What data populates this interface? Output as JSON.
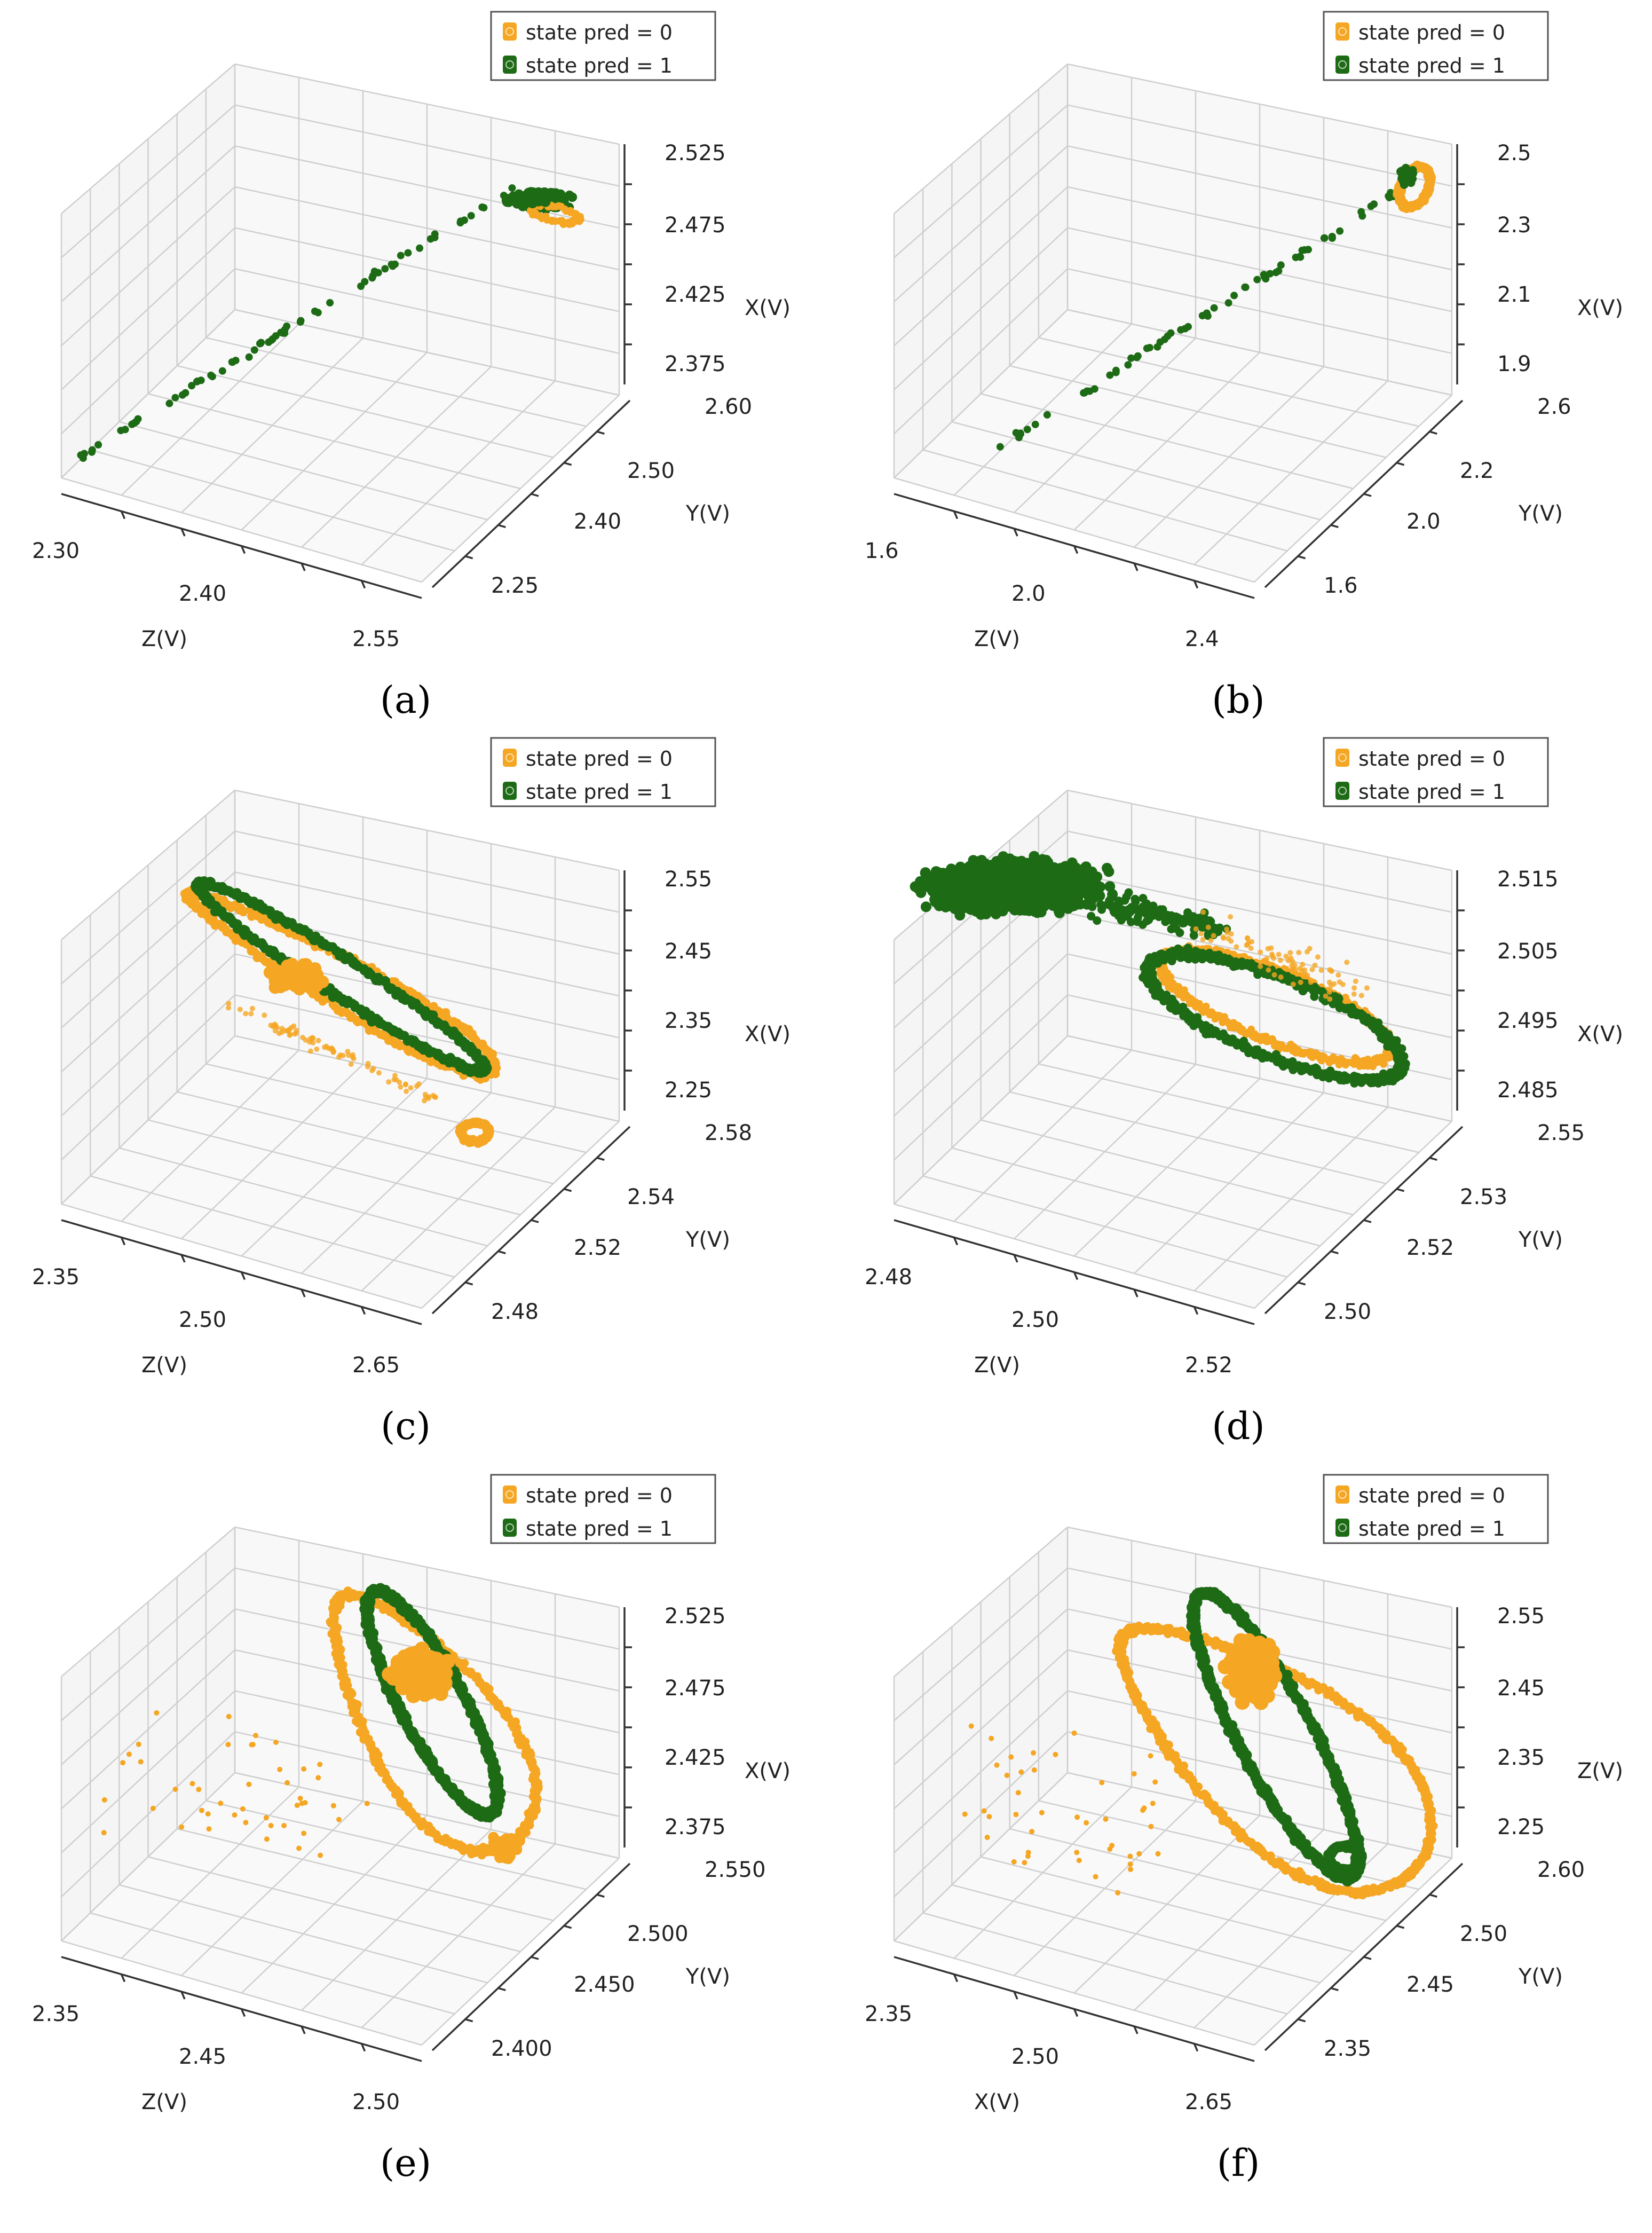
{
  "figure": {
    "panel_count": 6
  },
  "colors": {
    "state0": "#f5a623",
    "state1": "#1e6b16",
    "grid": "#cfcfcf",
    "pane": "#f2f2f2",
    "axis": "#333333"
  },
  "chart_data": [
    {
      "type": "scatter3d",
      "caption": "(a)",
      "legend": [
        "state  pred  =  0",
        "state  pred  =  1"
      ],
      "axes": {
        "vertical": {
          "label": "X(V)",
          "ticks": [
            "2.525",
            "2.475",
            "2.425",
            "2.375"
          ]
        },
        "right": {
          "label": "Y(V)",
          "ticks": [
            "2.60",
            "2.50",
            "2.40",
            "2.25"
          ]
        },
        "left": {
          "label": "Z(V)",
          "ticks": [
            "2.30",
            "2.40",
            "2.55"
          ]
        }
      },
      "pattern": "line",
      "series": [
        {
          "name": "state pred = 1",
          "trend": [
            {
              "x": 2.36,
              "y": 2.27,
              "z": 2.3
            },
            {
              "x": 2.49,
              "y": 2.52,
              "z": 2.5
            }
          ],
          "cluster": "end"
        },
        {
          "name": "state pred = 0",
          "cluster": "end-small"
        }
      ]
    },
    {
      "type": "scatter3d",
      "caption": "(b)",
      "legend": [
        "state  pred  =  0",
        "state  pred  =  1"
      ],
      "axes": {
        "vertical": {
          "label": "X(V)",
          "ticks": [
            "2.5",
            "2.3",
            "2.1",
            "1.9"
          ]
        },
        "right": {
          "label": "Y(V)",
          "ticks": [
            "2.6",
            "2.2",
            "2.0",
            "1.6"
          ]
        },
        "left": {
          "label": "Z(V)",
          "ticks": [
            "1.6",
            "2.0",
            "2.4"
          ]
        }
      },
      "pattern": "line",
      "series": [
        {
          "name": "state pred = 1",
          "trend": [
            {
              "x": 1.8,
              "y": 1.7,
              "z": 1.7
            },
            {
              "x": 2.5,
              "y": 2.5,
              "z": 2.4
            }
          ],
          "cluster": "end"
        },
        {
          "name": "state pred = 0",
          "cluster": "end-loop"
        }
      ]
    },
    {
      "type": "scatter3d",
      "caption": "(c)",
      "legend": [
        "state  pred  =  0",
        "state  pred  =  1"
      ],
      "axes": {
        "vertical": {
          "label": "X(V)",
          "ticks": [
            "2.55",
            "2.45",
            "2.35",
            "2.25"
          ]
        },
        "right": {
          "label": "Y(V)",
          "ticks": [
            "2.58",
            "2.54",
            "2.52",
            "2.48"
          ]
        },
        "left": {
          "label": "Z(V)",
          "ticks": [
            "2.35",
            "2.50",
            "2.65"
          ]
        }
      },
      "pattern": "elongated-loop",
      "series": [
        {
          "name": "state pred = 0"
        },
        {
          "name": "state pred = 1"
        }
      ]
    },
    {
      "type": "scatter3d",
      "caption": "(d)",
      "legend": [
        "state  pred  =  0",
        "state  pred  =  1"
      ],
      "axes": {
        "vertical": {
          "label": "X(V)",
          "ticks": [
            "2.515",
            "2.505",
            "2.495",
            "2.485"
          ]
        },
        "right": {
          "label": "Y(V)",
          "ticks": [
            "2.55",
            "2.53",
            "2.52",
            "2.50"
          ]
        },
        "left": {
          "label": "Z(V)",
          "ticks": [
            "2.48",
            "2.50",
            "2.52"
          ]
        }
      },
      "pattern": "dense-cloud-loop",
      "series": [
        {
          "name": "state pred = 1"
        },
        {
          "name": "state pred = 0"
        }
      ]
    },
    {
      "type": "scatter3d",
      "caption": "(e)",
      "legend": [
        "state  pred  =  0",
        "state  pred  =  1"
      ],
      "axes": {
        "vertical": {
          "label": "X(V)",
          "ticks": [
            "2.525",
            "2.475",
            "2.425",
            "2.375"
          ]
        },
        "right": {
          "label": "Y(V)",
          "ticks": [
            "2.550",
            "2.500",
            "2.450",
            "2.400"
          ]
        },
        "left": {
          "label": "Z(V)",
          "ticks": [
            "2.35",
            "2.45",
            "2.50"
          ]
        }
      },
      "pattern": "nested-loops-scatter",
      "series": [
        {
          "name": "state pred = 0"
        },
        {
          "name": "state pred = 1"
        }
      ]
    },
    {
      "type": "scatter3d",
      "caption": "(f)",
      "legend": [
        "state  pred  =  0",
        "state  pred  =  1"
      ],
      "axes": {
        "vertical": {
          "label": "Z(V)",
          "ticks": [
            "2.55",
            "2.45",
            "2.35",
            "2.25"
          ]
        },
        "right": {
          "label": "Y(V)",
          "ticks": [
            "2.60",
            "2.50",
            "2.45",
            "2.35"
          ]
        },
        "left": {
          "label": "X(V)",
          "ticks": [
            "2.35",
            "2.50",
            "2.65"
          ]
        }
      },
      "pattern": "nested-loops-scatter",
      "series": [
        {
          "name": "state pred = 0"
        },
        {
          "name": "state pred = 1"
        }
      ]
    }
  ]
}
